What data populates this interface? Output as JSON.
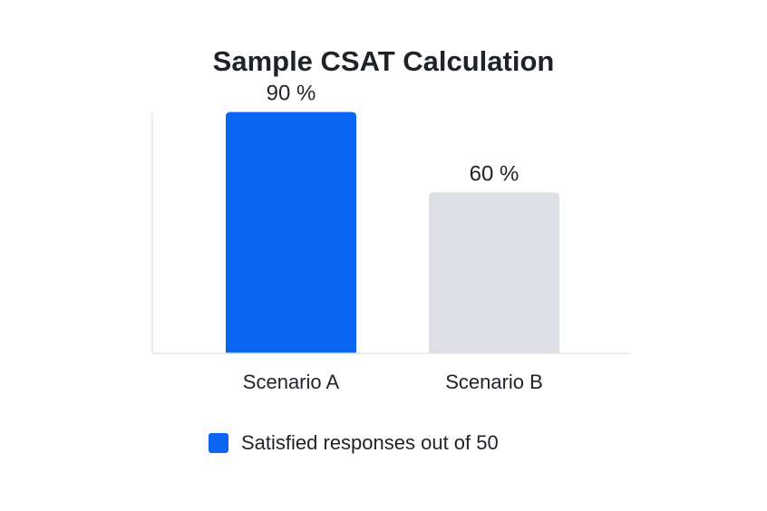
{
  "chart_data": {
    "type": "bar",
    "title": "Sample CSAT Calculation",
    "categories": [
      "Scenario A",
      "Scenario B"
    ],
    "values": [
      90,
      60
    ],
    "value_labels": [
      "90 %",
      "60 %"
    ],
    "bar_colors": [
      "#0a66f0",
      "#dcdfe3"
    ],
    "ylim": [
      0,
      100
    ],
    "grid": false,
    "axis_color": "#e3e5e8",
    "legend": {
      "placement": "bottom",
      "entries": [
        {
          "label": "Satisfied responses out of 50",
          "color": "#0a66f0"
        }
      ]
    }
  }
}
